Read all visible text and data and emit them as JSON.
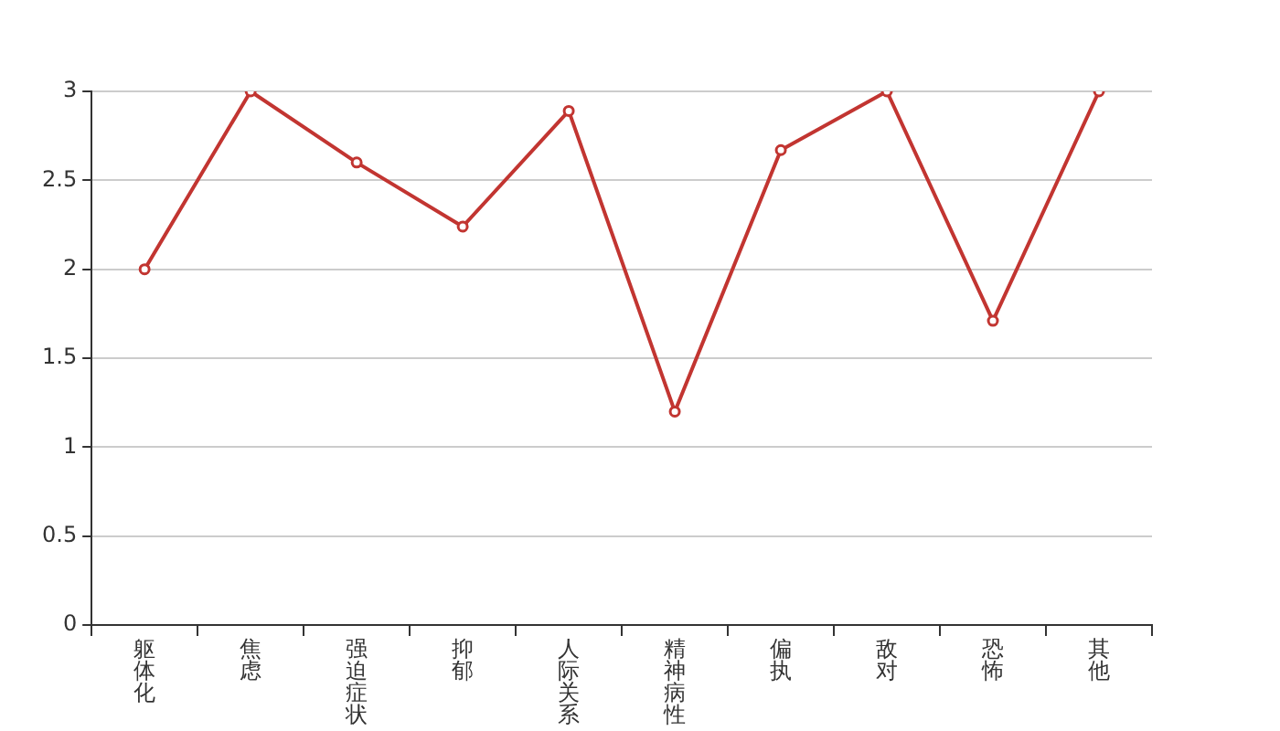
{
  "chart_data": {
    "type": "line",
    "categories": [
      "躯体化",
      "焦虑",
      "强迫症状",
      "抑郁",
      "人际关系",
      "精神病性",
      "偏执",
      "敌对",
      "恐怖",
      "其他"
    ],
    "series": [
      {
        "color": "#c23531",
        "values": [
          2.0,
          3.0,
          2.6,
          2.24,
          2.89,
          1.2,
          2.67,
          3.0,
          1.71,
          3.0
        ]
      }
    ],
    "ylim": [
      0,
      3
    ],
    "yticks": [
      0,
      0.5,
      1,
      1.5,
      2,
      2.5,
      3
    ],
    "grid": "y",
    "legend": false,
    "marker": "circle",
    "line_style": "solid"
  }
}
